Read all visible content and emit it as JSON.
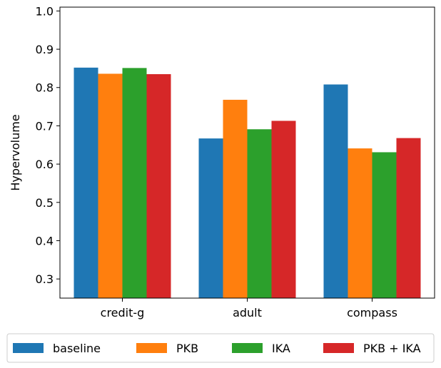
{
  "chart_data": {
    "type": "bar",
    "title": "",
    "xlabel": "",
    "ylabel": "Hypervolume",
    "categories": [
      "credit-g",
      "adult",
      "compass"
    ],
    "ylim": [
      0.25,
      1.01
    ],
    "yticks": [
      0.3,
      0.4,
      0.5,
      0.6,
      0.7,
      0.8,
      0.9,
      1.0
    ],
    "grid": false,
    "legend_position": "bottom",
    "series": [
      {
        "name": "baseline",
        "color": "#1f77b4",
        "values": [
          0.852,
          0.667,
          0.808
        ]
      },
      {
        "name": "PKB",
        "color": "#ff7f0e",
        "values": [
          0.836,
          0.768,
          0.641
        ]
      },
      {
        "name": "IKA",
        "color": "#2ca02c",
        "values": [
          0.851,
          0.691,
          0.631
        ]
      },
      {
        "name": "PKB + IKA",
        "color": "#d62728",
        "values": [
          0.835,
          0.713,
          0.668
        ]
      }
    ]
  }
}
